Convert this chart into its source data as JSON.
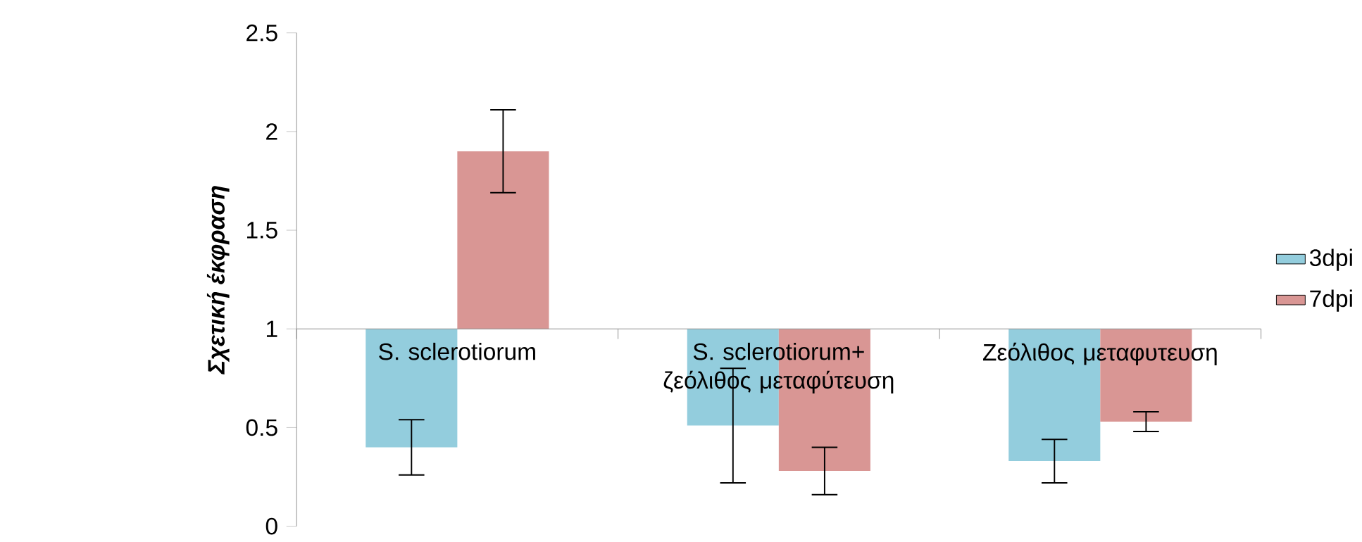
{
  "chart_data": {
    "type": "bar",
    "ylabel": "**Σχετική έκφραση**",
    "categories": [
      "S. sclerotiorum",
      "S. sclerotiorum+ ζεόλιθος μεταφύτευση",
      "Ζεόλιθος μεταφυτευση"
    ],
    "series": [
      {
        "name": "3dpi",
        "color": "#93cddd",
        "base": [
          1,
          1,
          1
        ],
        "values": [
          -0.6,
          -0.49,
          -0.67
        ],
        "errors": [
          0.14,
          0.29,
          0.11
        ]
      },
      {
        "name": "7dpi",
        "color": "#d99694",
        "base": [
          1,
          1,
          1
        ],
        "values": [
          0.9,
          -0.72,
          -0.47
        ],
        "errors": [
          0.21,
          0.12,
          0.05
        ]
      }
    ],
    "ylim": [
      0,
      2.5
    ],
    "yticks": [
      0,
      0.5,
      1,
      1.5,
      2,
      2.5
    ],
    "legend": "right"
  }
}
